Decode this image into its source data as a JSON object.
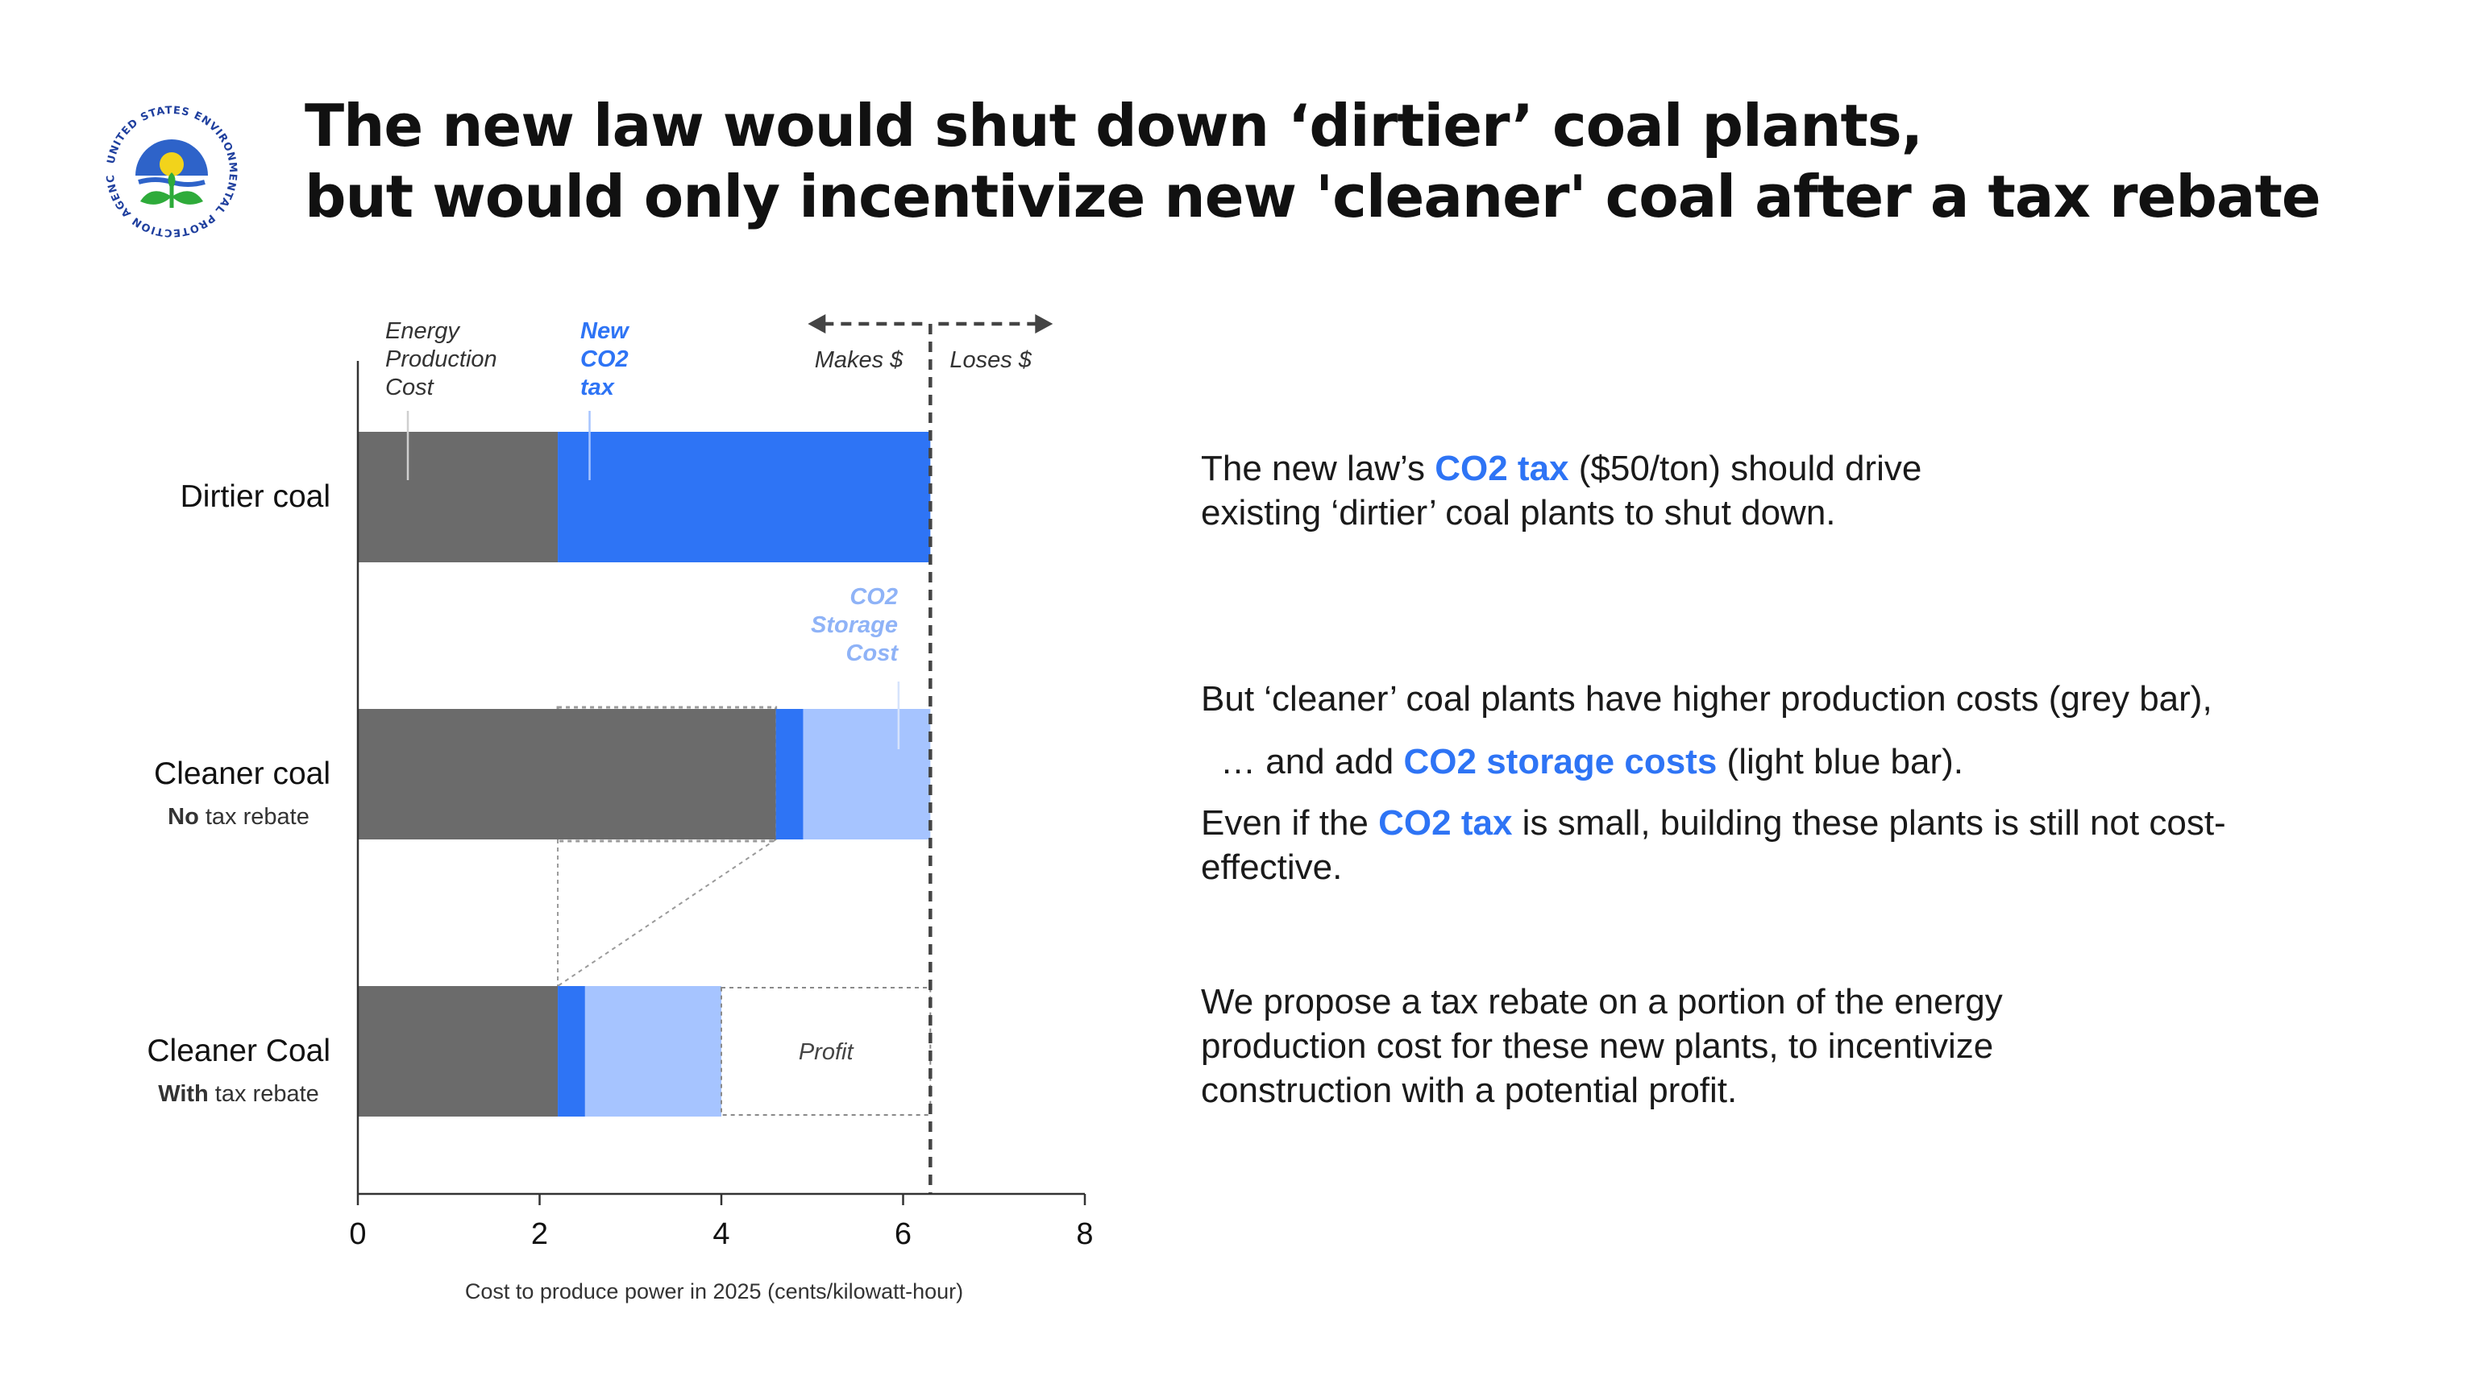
{
  "title": {
    "line1": "The new law would shut down ‘dirtier’ coal plants,",
    "line2": "but would only incentivize new 'cleaner' coal after a tax rebate"
  },
  "logo": {
    "name": "epa-logo",
    "text": "UNITED STATES ENVIRONMENTAL PROTECTION AGENCY"
  },
  "colors": {
    "grey": "#6b6b6b",
    "blue": "#2e74f5",
    "light_blue": "#a6c4ff",
    "text": "#111111"
  },
  "chart_data": {
    "type": "bar",
    "orientation": "horizontal-stacked",
    "xlabel": "Cost to produce power in 2025 (cents/kilowatt-hour)",
    "xlim": [
      0,
      8
    ],
    "xticks": [
      "0",
      "2",
      "4",
      "6",
      "8"
    ],
    "categories": [
      {
        "name": "Dirtier coal",
        "sub_bold": "",
        "sub_rest": ""
      },
      {
        "name": "Cleaner coal",
        "sub_bold": "No",
        "sub_rest": " tax rebate"
      },
      {
        "name": "Cleaner Coal",
        "sub_bold": "With",
        "sub_rest": " tax rebate"
      }
    ],
    "series": [
      {
        "name": "Energy Production Cost",
        "color": "#6b6b6b",
        "values": [
          2.2,
          4.6,
          2.2
        ]
      },
      {
        "name": "New CO2 tax",
        "color": "#2e74f5",
        "values": [
          4.1,
          0.3,
          0.3
        ]
      },
      {
        "name": "CO2 Storage Cost",
        "color": "#a6c4ff",
        "values": [
          0,
          1.4,
          1.5
        ]
      },
      {
        "name": "Profit",
        "color": "none",
        "values": [
          0,
          0,
          2.3
        ]
      }
    ],
    "breakeven": 6.3,
    "labels": {
      "energy_cost": [
        "Energy",
        "Production",
        "Cost"
      ],
      "co2_tax": [
        "New",
        "CO2",
        "tax"
      ],
      "storage": [
        "CO2",
        "Storage",
        "Cost"
      ],
      "makes": "Makes $",
      "loses": "Loses $",
      "profit": "Profit"
    }
  },
  "text": {
    "p1": {
      "a": "The new law’s ",
      "b": "CO2 tax",
      "c": " ($50/ton) should drive",
      "d": "existing ‘dirtier’ coal plants to shut down."
    },
    "p2": "But ‘cleaner’ coal plants have higher production costs (grey bar),",
    "p3": {
      "a": "… and add ",
      "b": "CO2 storage costs",
      "c": " (light blue bar)."
    },
    "p4": {
      "a": "Even if the ",
      "b": "CO2 tax",
      "c": " is small, building these plants is still not cost-",
      "d": "effective."
    },
    "p5": {
      "a": "We propose a tax rebate on a portion of the energy",
      "b": "production cost for these new plants, to incentivize",
      "c": "construction with a potential profit."
    }
  }
}
